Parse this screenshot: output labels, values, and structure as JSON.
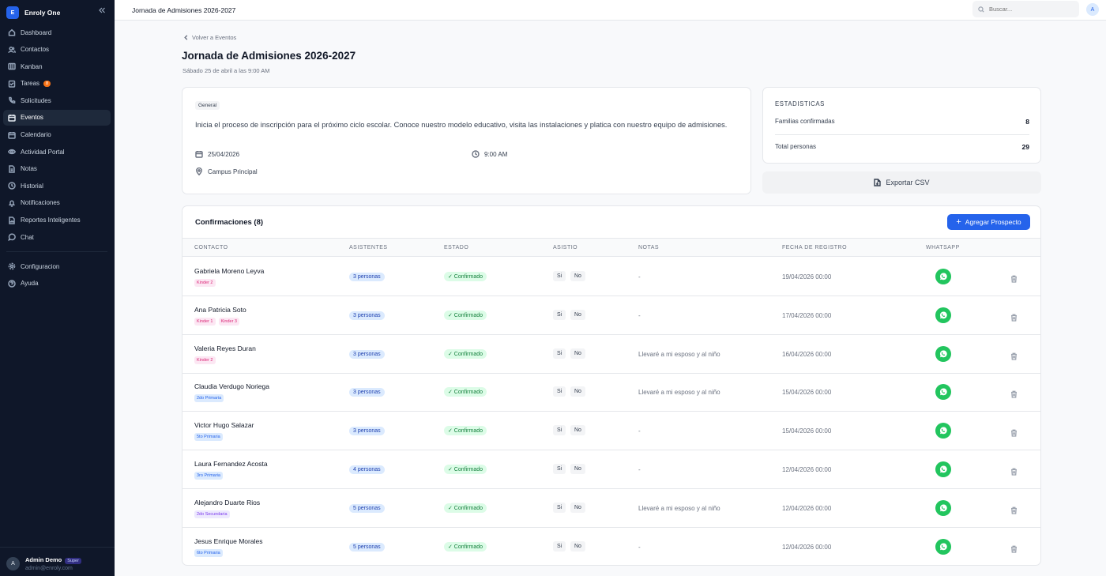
{
  "app": {
    "name": "Enroly One",
    "logo_letter": "E"
  },
  "sidebar": {
    "items": [
      {
        "label": "Dashboard",
        "icon": "home-icon"
      },
      {
        "label": "Contactos",
        "icon": "users-icon"
      },
      {
        "label": "Kanban",
        "icon": "kanban-icon"
      },
      {
        "label": "Tareas",
        "icon": "tasks-icon",
        "badge": "8"
      },
      {
        "label": "Solicitudes",
        "icon": "phone-icon"
      },
      {
        "label": "Eventos",
        "icon": "calendar-icon",
        "active": true
      },
      {
        "label": "Calendario",
        "icon": "calendar-icon"
      },
      {
        "label": "Actividad Portal",
        "icon": "eye-icon"
      },
      {
        "label": "Notas",
        "icon": "note-icon"
      },
      {
        "label": "Historial",
        "icon": "clock-icon"
      },
      {
        "label": "Notificaciones",
        "icon": "bell-icon"
      },
      {
        "label": "Reportes Inteligentes",
        "icon": "report-icon"
      },
      {
        "label": "Chat",
        "icon": "chat-icon"
      }
    ],
    "bottom_items": [
      {
        "label": "Configuracion",
        "icon": "gear-icon"
      },
      {
        "label": "Ayuda",
        "icon": "help-icon"
      }
    ],
    "user": {
      "avatar": "A",
      "name": "Admin Demo",
      "role": "Super",
      "email": "admin@enroly.com"
    }
  },
  "topbar": {
    "title": "Jornada de Admisiones 2026-2027",
    "search_placeholder": "Buscar...",
    "avatar": "A"
  },
  "page": {
    "back_label": "Volver a Eventos",
    "title": "Jornada de Admisiones 2026-2027",
    "subtitle": "Sábado 25 de abril a las 9:00 AM"
  },
  "info": {
    "tag": "General",
    "description": "Inicia el proceso de inscripción para el próximo ciclo escolar. Conoce nuestro modelo educativo, visita las instalaciones y platica con nuestro equipo de admisiones.",
    "date": "25/04/2026",
    "time": "9:00 AM",
    "location": "Campus Principal"
  },
  "stats": {
    "title": "ESTADISTICAS",
    "rows": [
      {
        "label": "Familias confirmadas",
        "value": "8"
      },
      {
        "label": "Total personas",
        "value": "29"
      }
    ],
    "export_label": "Exportar CSV"
  },
  "table": {
    "title": "Confirmaciones (8)",
    "add_label": "Agregar Prospecto",
    "headers": [
      "CONTACTO",
      "ASISTENTES",
      "ESTADO",
      "ASISTIO",
      "NOTAS",
      "FECHA DE REGISTRO",
      "WHATSAPP"
    ],
    "si_label": "Si",
    "no_label": "No",
    "rows": [
      {
        "name": "Gabriela Moreno Leyva",
        "grades": [
          {
            "label": "Kinder 2",
            "color": "pink"
          }
        ],
        "asistentes": "3 personas",
        "estado": "✓ Confirmado",
        "notas": "-",
        "fecha": "19/04/2026 00:00"
      },
      {
        "name": "Ana Patricia Soto",
        "grades": [
          {
            "label": "Kinder 1",
            "color": "pink"
          },
          {
            "label": "Kinder 3",
            "color": "pink"
          }
        ],
        "asistentes": "3 personas",
        "estado": "✓ Confirmado",
        "notas": "-",
        "fecha": "17/04/2026 00:00"
      },
      {
        "name": "Valeria Reyes Duran",
        "grades": [
          {
            "label": "Kinder 2",
            "color": "pink"
          }
        ],
        "asistentes": "3 personas",
        "estado": "✓ Confirmado",
        "notas": "Llevaré a mi esposo y al niño",
        "fecha": "16/04/2026 00:00"
      },
      {
        "name": "Claudia Verdugo Noriega",
        "grades": [
          {
            "label": "2do Primaria",
            "color": "blue"
          }
        ],
        "asistentes": "3 personas",
        "estado": "✓ Confirmado",
        "notas": "Llevaré a mi esposo y al niño",
        "fecha": "15/04/2026 00:00"
      },
      {
        "name": "Victor Hugo Salazar",
        "grades": [
          {
            "label": "5to Primaria",
            "color": "blue"
          }
        ],
        "asistentes": "3 personas",
        "estado": "✓ Confirmado",
        "notas": "-",
        "fecha": "15/04/2026 00:00"
      },
      {
        "name": "Laura Fernandez Acosta",
        "grades": [
          {
            "label": "3ro Primaria",
            "color": "blue"
          }
        ],
        "asistentes": "4 personas",
        "estado": "✓ Confirmado",
        "notas": "-",
        "fecha": "12/04/2026 00:00"
      },
      {
        "name": "Alejandro Duarte Rios",
        "grades": [
          {
            "label": "2do Secundaria",
            "color": "purple"
          }
        ],
        "asistentes": "5 personas",
        "estado": "✓ Confirmado",
        "notas": "Llevaré a mi esposo y al niño",
        "fecha": "12/04/2026 00:00"
      },
      {
        "name": "Jesus Enrique Morales",
        "grades": [
          {
            "label": "6to Primaria",
            "color": "blue"
          }
        ],
        "asistentes": "5 personas",
        "estado": "✓ Confirmado",
        "notas": "-",
        "fecha": "12/04/2026 00:00"
      }
    ]
  }
}
